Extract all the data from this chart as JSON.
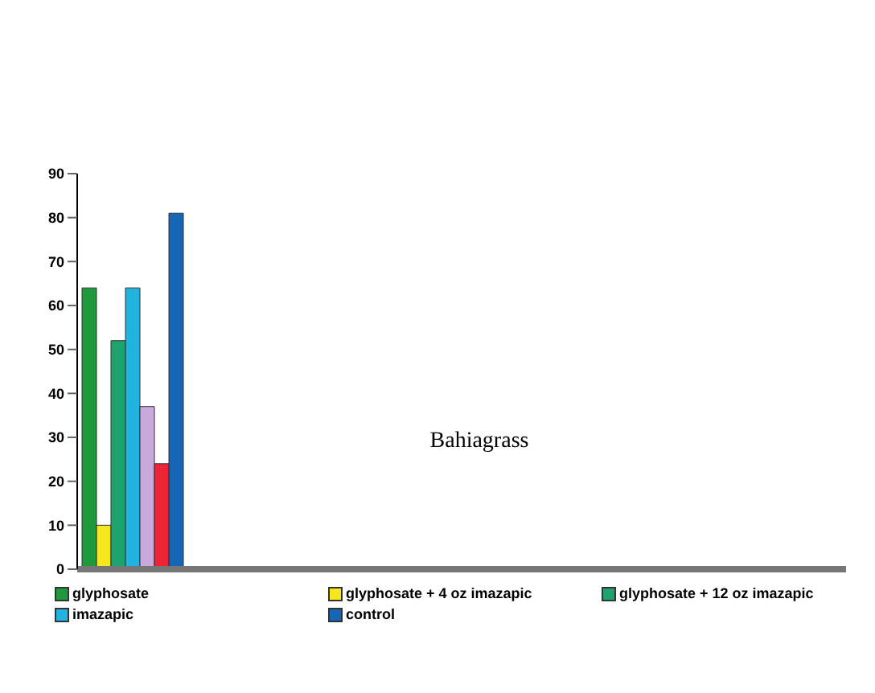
{
  "chart_data": {
    "type": "bar",
    "title": "Bahiagrass",
    "categories": [
      null
    ],
    "series": [
      {
        "name": "glyphosate",
        "color": "#1e9a3c",
        "values": [
          64
        ]
      },
      {
        "name": "glyphosate + 4 oz imazapic",
        "color": "#f5e61e",
        "values": [
          10
        ]
      },
      {
        "name": "glyphosate + 12 oz imazapic",
        "color": "#1ea36e",
        "values": [
          52
        ]
      },
      {
        "name": "imazapic",
        "color": "#21b4e0",
        "values": [
          64
        ]
      },
      {
        "color": "#c9a8dc",
        "values": [
          37
        ]
      },
      {
        "color": "#ee2336",
        "values": [
          24
        ]
      },
      {
        "name": "control",
        "color": "#1666b5",
        "values": [
          81
        ]
      }
    ],
    "ylim": [
      0,
      90
    ],
    "yticks": [
      0,
      10,
      20,
      30,
      40,
      50,
      60,
      70,
      80,
      90
    ],
    "legend": "bottom"
  }
}
